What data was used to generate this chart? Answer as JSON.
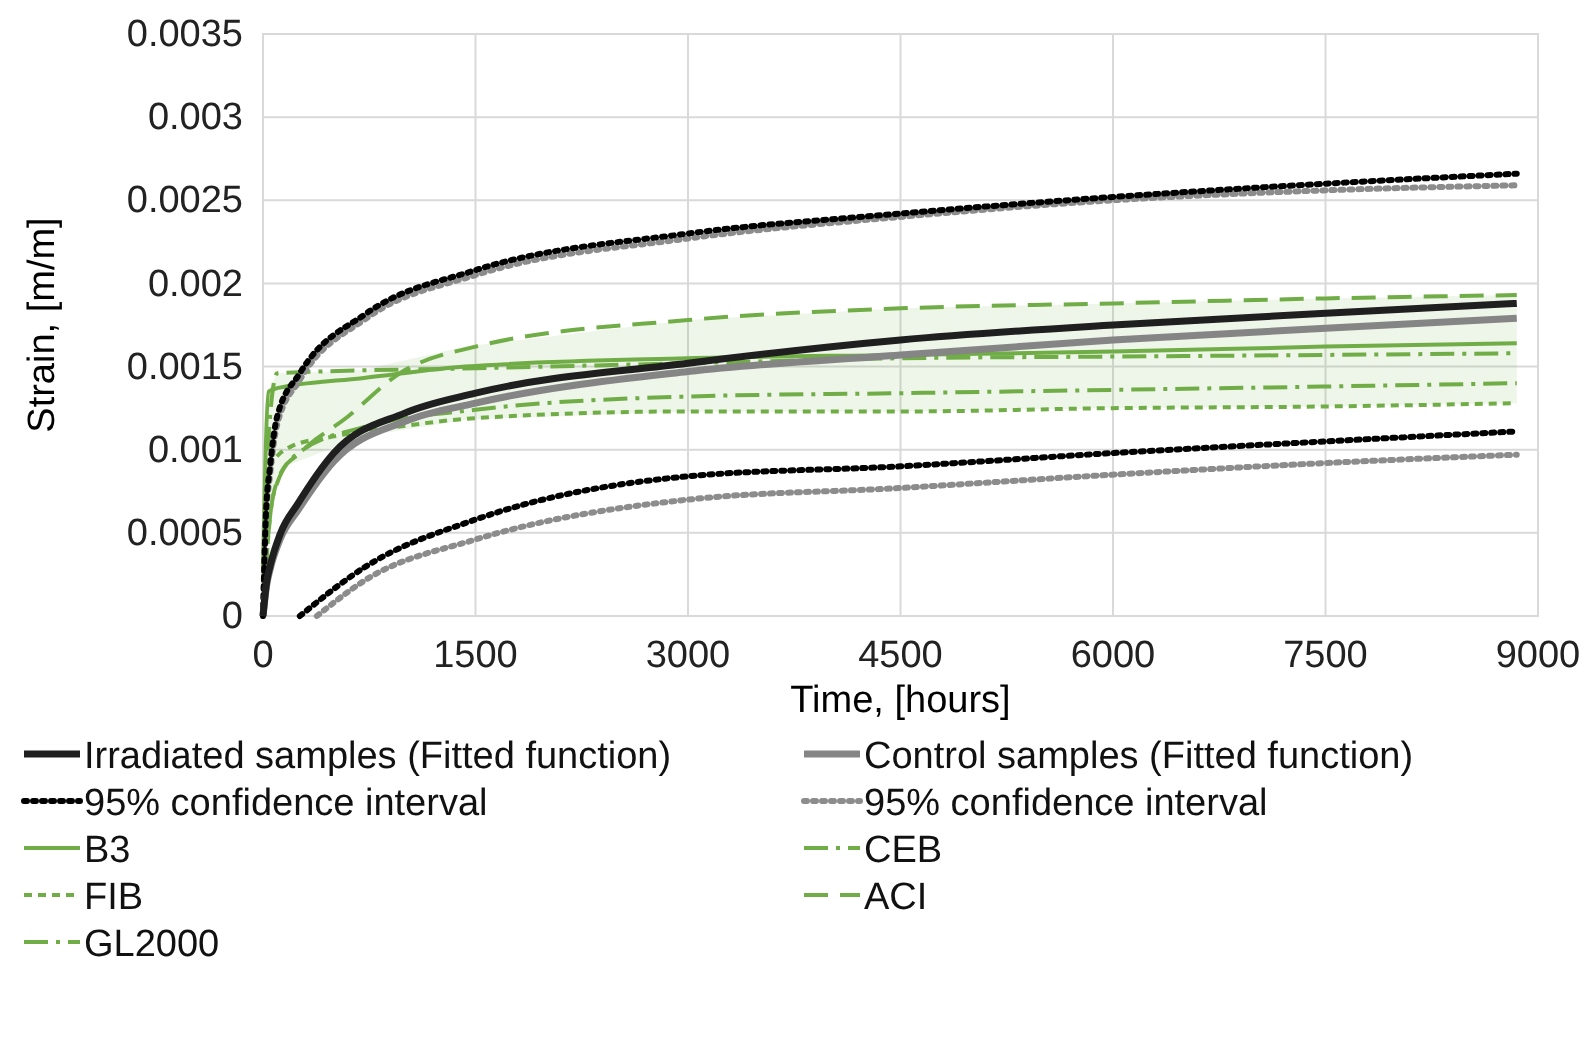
{
  "chart_data": {
    "type": "line",
    "xlabel": "Time, [hours]",
    "ylabel": "Strain, [m/m]",
    "xlim": [
      0,
      9000
    ],
    "xticks": [
      0,
      1500,
      3000,
      4500,
      6000,
      7500,
      9000
    ],
    "ylim": [
      0,
      0.0035
    ],
    "yticks": [
      0,
      0.0005,
      0.001,
      0.0015,
      0.002,
      0.0025,
      0.003,
      0.0035
    ],
    "grid": true,
    "legend": "bottom",
    "marker": "none",
    "series": [
      {
        "name": "Irradiated samples (Fitted function)",
        "color": "#1f1f1f",
        "line_style": "solid",
        "x": [
          0,
          25,
          50,
          120,
          250,
          500,
          1000,
          1500,
          3000,
          4500,
          6000,
          7500,
          8850
        ],
        "values": [
          0,
          0.0002,
          0.0003,
          0.00049,
          0.00068,
          0.00098,
          0.00122,
          0.00134,
          0.00152,
          0.00166,
          0.00175,
          0.00182,
          0.00188
        ]
      },
      {
        "name": "Control samples (Fitted function)",
        "color": "#858585",
        "line_style": "solid",
        "x": [
          0,
          25,
          50,
          120,
          250,
          500,
          1000,
          1500,
          3000,
          4500,
          6000,
          7500,
          8850
        ],
        "values": [
          0,
          0.00018,
          0.00028,
          0.00046,
          0.00064,
          0.00093,
          0.00117,
          0.00128,
          0.00147,
          0.00157,
          0.00166,
          0.00173,
          0.00179
        ]
      },
      {
        "name": "95% confidence interval",
        "color": "#000000",
        "line_style": "dotted",
        "x": [
          0,
          20,
          50,
          100,
          260,
          730,
          1500,
          3000,
          4500,
          6000,
          7500,
          8850,
          null,
          260,
          730,
          1500,
          3000,
          4500,
          6000,
          7500,
          8850
        ],
        "values": [
          0,
          0.0006,
          0.0009,
          0.0012,
          0.00146,
          0.00182,
          0.00208,
          0.0023,
          0.00242,
          0.00252,
          0.0026,
          0.00266,
          null,
          0,
          0.0003,
          0.00058,
          0.00084,
          0.0009,
          0.00098,
          0.00105,
          0.00111
        ]
      },
      {
        "name": "95% confidence interval",
        "color": "#8c8c8c",
        "line_style": "dotted",
        "x": [
          0,
          20,
          50,
          100,
          260,
          730,
          1500,
          3000,
          4500,
          6000,
          7500,
          8850,
          null,
          380,
          730,
          1500,
          3000,
          4500,
          6000,
          7500,
          8850
        ],
        "values": [
          0,
          0.00055,
          0.00085,
          0.00115,
          0.00142,
          0.00179,
          0.00205,
          0.00227,
          0.0024,
          0.0025,
          0.00256,
          0.00259,
          null,
          0,
          0.00022,
          0.00046,
          0.0007,
          0.00077,
          0.00085,
          0.00092,
          0.00097
        ]
      },
      {
        "name": "B3",
        "color": "#70ad47",
        "line_style": "solid",
        "x": [
          0,
          40,
          100,
          160,
          700,
          1430,
          3000,
          4500,
          6000,
          7500,
          8850
        ],
        "values": [
          0.0003,
          0.00135,
          0.00137,
          0.00138,
          0.00143,
          0.0015,
          0.00155,
          0.00157,
          0.00159,
          0.00162,
          0.00164
        ],
        "lower": [
          null,
          0.0006,
          0.00085,
          0.0009,
          0.00108,
          0.00118,
          0.00123,
          0.00123,
          0.00125,
          0.00126,
          0.00128
        ],
        "upper": [
          null,
          0.00135,
          0.00146,
          0.00146,
          0.00148,
          0.00162,
          0.00178,
          0.00185,
          0.00188,
          0.00191,
          0.00193
        ]
      },
      {
        "name": "CEB",
        "color": "#70ad47",
        "line_style": "dashdot",
        "x": [
          0,
          50,
          100,
          250,
          730,
          1500,
          3000,
          4500,
          6000,
          7500,
          8850
        ],
        "values": [
          0,
          0.0006,
          0.0008,
          0.00098,
          0.00114,
          0.00124,
          0.00132,
          0.00134,
          0.00136,
          0.00138,
          0.0014
        ]
      },
      {
        "name": "FIB",
        "color": "#70ad47",
        "line_style": "dashed",
        "x": [
          0,
          50,
          200,
          500,
          966,
          1500,
          3000,
          4500,
          6000,
          7500,
          8850
        ],
        "values": [
          0.0003,
          0.0009,
          0.00102,
          0.00108,
          0.00114,
          0.00119,
          0.00123,
          0.00123,
          0.00125,
          0.00126,
          0.00128
        ]
      },
      {
        "name": "ACI",
        "color": "#70ad47",
        "line_style": "longdash",
        "x": [
          0,
          50,
          120,
          260,
          600,
          966,
          1500,
          3000,
          4500,
          6000,
          7500,
          8850
        ],
        "values": [
          0,
          0.0006,
          0.00085,
          0.00098,
          0.0012,
          0.00146,
          0.00162,
          0.00178,
          0.00185,
          0.00188,
          0.00191,
          0.00193
        ]
      },
      {
        "name": "GL2000",
        "color": "#70ad47",
        "line_style": "dashdot",
        "x": [
          0,
          50,
          100,
          1500,
          3000,
          4500,
          6000,
          7500,
          8850
        ],
        "values": [
          0.0002,
          0.0012,
          0.00146,
          0.00149,
          0.00152,
          0.00155,
          0.00156,
          0.00157,
          0.00158
        ]
      }
    ]
  }
}
